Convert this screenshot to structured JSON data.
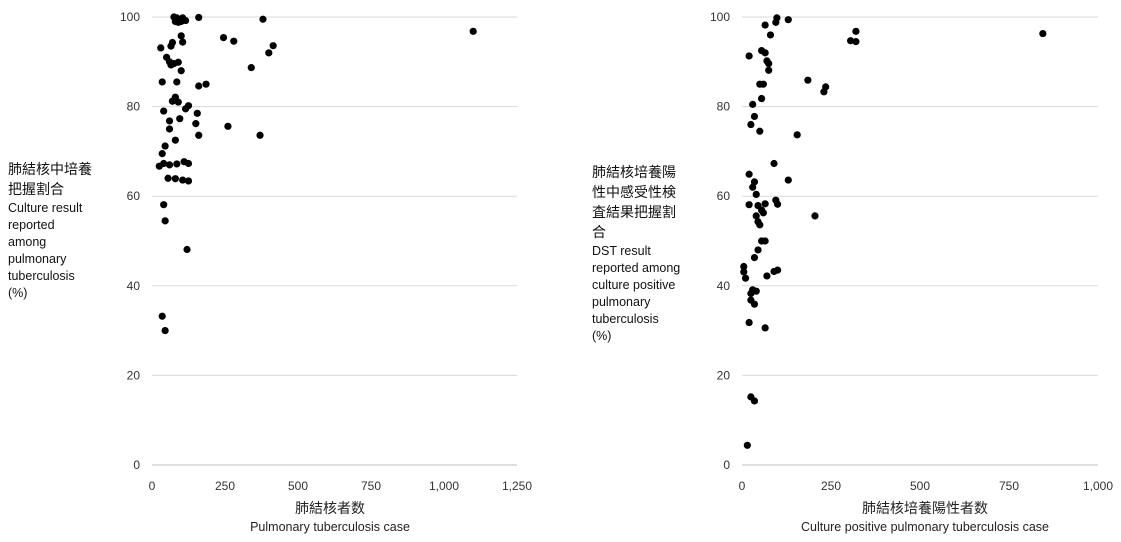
{
  "chart_data": [
    {
      "type": "scatter",
      "xlabel_jp": "肺結核者数",
      "xlabel_en": "Pulmonary tuberculosis case",
      "ylabel_jp_lines": [
        "肺結核中培養",
        "把握割合"
      ],
      "ylabel_en_lines": [
        "Culture result",
        "reported",
        "among",
        "pulmonary",
        "tuberculosis",
        "(%)"
      ],
      "xlim": [
        0,
        1250
      ],
      "ylim": [
        0,
        100
      ],
      "xticks": [
        0,
        250,
        500,
        750,
        1000,
        1250
      ],
      "xtick_labels": [
        "0",
        "250",
        "500",
        "750",
        "1,000",
        "1,250"
      ],
      "yticks": [
        0,
        20,
        40,
        60,
        80,
        100
      ],
      "ytick_labels": [
        "0",
        "20",
        "40",
        "60",
        "80",
        "100"
      ],
      "grid": "horizontal",
      "points": [
        {
          "x": 75,
          "y": 100
        },
        {
          "x": 85,
          "y": 99.8
        },
        {
          "x": 105,
          "y": 99.8
        },
        {
          "x": 160,
          "y": 99.9
        },
        {
          "x": 380,
          "y": 99.5
        },
        {
          "x": 90,
          "y": 98.8
        },
        {
          "x": 100,
          "y": 99
        },
        {
          "x": 115,
          "y": 99.2
        },
        {
          "x": 80,
          "y": 99
        },
        {
          "x": 1100,
          "y": 96.8
        },
        {
          "x": 100,
          "y": 95.8
        },
        {
          "x": 245,
          "y": 95.4
        },
        {
          "x": 280,
          "y": 94.6
        },
        {
          "x": 105,
          "y": 94.4
        },
        {
          "x": 415,
          "y": 93.6
        },
        {
          "x": 30,
          "y": 93.1
        },
        {
          "x": 65,
          "y": 93.5
        },
        {
          "x": 70,
          "y": 94.3
        },
        {
          "x": 400,
          "y": 92
        },
        {
          "x": 50,
          "y": 91
        },
        {
          "x": 60,
          "y": 90
        },
        {
          "x": 65,
          "y": 89.3
        },
        {
          "x": 90,
          "y": 89.9
        },
        {
          "x": 75,
          "y": 89.6
        },
        {
          "x": 340,
          "y": 88.7
        },
        {
          "x": 100,
          "y": 88
        },
        {
          "x": 35,
          "y": 85.5
        },
        {
          "x": 85,
          "y": 85.5
        },
        {
          "x": 160,
          "y": 84.6
        },
        {
          "x": 185,
          "y": 85
        },
        {
          "x": 80,
          "y": 82.1
        },
        {
          "x": 70,
          "y": 81.2
        },
        {
          "x": 90,
          "y": 81
        },
        {
          "x": 125,
          "y": 80.2
        },
        {
          "x": 115,
          "y": 79.5
        },
        {
          "x": 40,
          "y": 79
        },
        {
          "x": 155,
          "y": 78.5
        },
        {
          "x": 95,
          "y": 77.3
        },
        {
          "x": 60,
          "y": 76.8
        },
        {
          "x": 150,
          "y": 76.2
        },
        {
          "x": 260,
          "y": 75.6
        },
        {
          "x": 60,
          "y": 75
        },
        {
          "x": 160,
          "y": 73.6
        },
        {
          "x": 370,
          "y": 73.6
        },
        {
          "x": 80,
          "y": 72.5
        },
        {
          "x": 45,
          "y": 71.2
        },
        {
          "x": 35,
          "y": 69.5
        },
        {
          "x": 40,
          "y": 67.3
        },
        {
          "x": 25,
          "y": 66.7
        },
        {
          "x": 60,
          "y": 67
        },
        {
          "x": 85,
          "y": 67.2
        },
        {
          "x": 110,
          "y": 67.7
        },
        {
          "x": 125,
          "y": 67.3
        },
        {
          "x": 55,
          "y": 64
        },
        {
          "x": 80,
          "y": 63.9
        },
        {
          "x": 105,
          "y": 63.6
        },
        {
          "x": 125,
          "y": 63.4
        },
        {
          "x": 40,
          "y": 58.1
        },
        {
          "x": 45,
          "y": 54.5
        },
        {
          "x": 120,
          "y": 48.1
        },
        {
          "x": 35,
          "y": 33.2
        },
        {
          "x": 45,
          "y": 30
        }
      ]
    },
    {
      "type": "scatter",
      "xlabel_jp": "肺結核培養陽性者数",
      "xlabel_en": "Culture positive pulmonary tuberculosis case",
      "ylabel_jp_lines": [
        "肺結核培養陽",
        "性中感受性検",
        "査結果把握割",
        "合"
      ],
      "ylabel_en_lines": [
        "DST result",
        "reported among",
        "culture positive",
        "pulmonary",
        "tuberculosis",
        "(%)"
      ],
      "xlim": [
        0,
        1000
      ],
      "ylim": [
        0,
        100
      ],
      "xticks": [
        0,
        250,
        500,
        750,
        1000
      ],
      "xtick_labels": [
        "0",
        "250",
        "500",
        "750",
        "1,000"
      ],
      "yticks": [
        0,
        20,
        40,
        60,
        80,
        100
      ],
      "ytick_labels": [
        "0",
        "20",
        "40",
        "60",
        "80",
        "100"
      ],
      "grid": "horizontal",
      "points": [
        {
          "x": 98,
          "y": 99.8
        },
        {
          "x": 130,
          "y": 99.4
        },
        {
          "x": 95,
          "y": 98.8
        },
        {
          "x": 65,
          "y": 98.2
        },
        {
          "x": 320,
          "y": 96.8
        },
        {
          "x": 845,
          "y": 96.3
        },
        {
          "x": 80,
          "y": 96
        },
        {
          "x": 305,
          "y": 94.7
        },
        {
          "x": 320,
          "y": 94.5
        },
        {
          "x": 55,
          "y": 92.5
        },
        {
          "x": 65,
          "y": 92
        },
        {
          "x": 20,
          "y": 91.3
        },
        {
          "x": 70,
          "y": 90.2
        },
        {
          "x": 75,
          "y": 89.6
        },
        {
          "x": 75,
          "y": 88.1
        },
        {
          "x": 185,
          "y": 85.9
        },
        {
          "x": 50,
          "y": 85
        },
        {
          "x": 60,
          "y": 85
        },
        {
          "x": 235,
          "y": 84.4
        },
        {
          "x": 230,
          "y": 83.3
        },
        {
          "x": 55,
          "y": 81.8
        },
        {
          "x": 30,
          "y": 80.5
        },
        {
          "x": 35,
          "y": 77.8
        },
        {
          "x": 25,
          "y": 76
        },
        {
          "x": 50,
          "y": 74.5
        },
        {
          "x": 155,
          "y": 73.7
        },
        {
          "x": 90,
          "y": 67.3
        },
        {
          "x": 20,
          "y": 64.9
        },
        {
          "x": 130,
          "y": 63.6
        },
        {
          "x": 35,
          "y": 63.2
        },
        {
          "x": 30,
          "y": 62
        },
        {
          "x": 40,
          "y": 60.4
        },
        {
          "x": 95,
          "y": 59.1
        },
        {
          "x": 100,
          "y": 58.2
        },
        {
          "x": 20,
          "y": 58.1
        },
        {
          "x": 45,
          "y": 57.9
        },
        {
          "x": 65,
          "y": 58.3
        },
        {
          "x": 55,
          "y": 56.9
        },
        {
          "x": 60,
          "y": 56.3
        },
        {
          "x": 40,
          "y": 55.6
        },
        {
          "x": 205,
          "y": 55.6
        },
        {
          "x": 45,
          "y": 54.3
        },
        {
          "x": 50,
          "y": 53.6
        },
        {
          "x": 55,
          "y": 50
        },
        {
          "x": 65,
          "y": 50
        },
        {
          "x": 45,
          "y": 48
        },
        {
          "x": 35,
          "y": 46.3
        },
        {
          "x": 100,
          "y": 43.5
        },
        {
          "x": 90,
          "y": 43.2
        },
        {
          "x": 5,
          "y": 44.3
        },
        {
          "x": 5,
          "y": 43.1
        },
        {
          "x": 70,
          "y": 42.2
        },
        {
          "x": 10,
          "y": 41.7
        },
        {
          "x": 30,
          "y": 39.1
        },
        {
          "x": 40,
          "y": 38.8
        },
        {
          "x": 25,
          "y": 38.3
        },
        {
          "x": 25,
          "y": 36.8
        },
        {
          "x": 35,
          "y": 35.9
        },
        {
          "x": 20,
          "y": 31.8
        },
        {
          "x": 65,
          "y": 30.6
        },
        {
          "x": 25,
          "y": 15.2
        },
        {
          "x": 35,
          "y": 14.3
        },
        {
          "x": 15,
          "y": 4.4
        }
      ]
    }
  ]
}
